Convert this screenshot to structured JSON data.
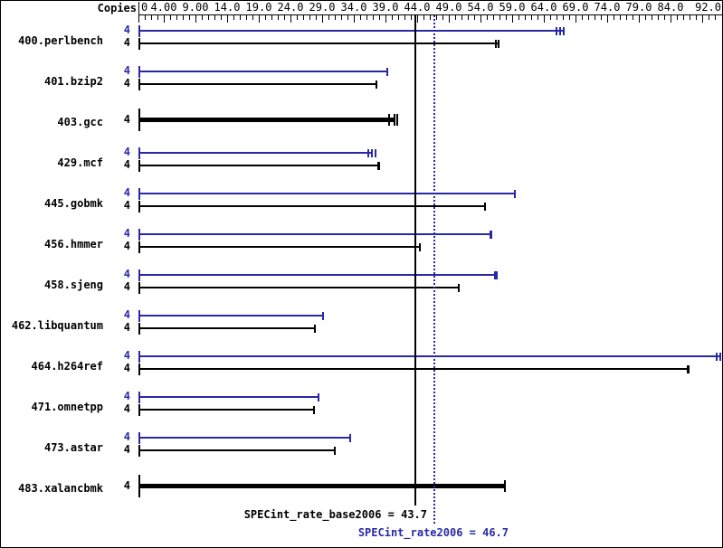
{
  "chart_data": {
    "type": "bar",
    "orientation": "horizontal",
    "copies_header": "Copies",
    "xlim": [
      0,
      92
    ],
    "grid": false,
    "colors": {
      "peak": "#2929a3",
      "base": "#000000",
      "background": "#ffffff",
      "border": "#000000"
    },
    "x_tick_labels": [
      {
        "value": 0,
        "text": "0",
        "align": "left"
      },
      {
        "value": 4,
        "text": "4.00",
        "align": "center"
      },
      {
        "value": 9,
        "text": "9.00",
        "align": "center"
      },
      {
        "value": 14,
        "text": "14.0",
        "align": "center"
      },
      {
        "value": 19,
        "text": "19.0",
        "align": "center"
      },
      {
        "value": 24,
        "text": "24.0",
        "align": "center"
      },
      {
        "value": 29,
        "text": "29.0",
        "align": "center"
      },
      {
        "value": 34,
        "text": "34.0",
        "align": "center"
      },
      {
        "value": 39,
        "text": "39.0",
        "align": "center"
      },
      {
        "value": 44,
        "text": "44.0",
        "align": "center"
      },
      {
        "value": 49,
        "text": "49.0",
        "align": "center"
      },
      {
        "value": 54,
        "text": "54.0",
        "align": "center"
      },
      {
        "value": 59,
        "text": "59.0",
        "align": "center"
      },
      {
        "value": 64,
        "text": "64.0",
        "align": "center"
      },
      {
        "value": 69,
        "text": "69.0",
        "align": "center"
      },
      {
        "value": 74,
        "text": "74.0",
        "align": "center"
      },
      {
        "value": 79,
        "text": "79.0",
        "align": "center"
      },
      {
        "value": 84,
        "text": "84.0",
        "align": "center"
      },
      {
        "value": 92,
        "text": "92.0",
        "align": "right"
      }
    ],
    "x_major_ticks": [
      4,
      9,
      14,
      19,
      24,
      29,
      34,
      39,
      44,
      49,
      54,
      59,
      64,
      69,
      74,
      79,
      84,
      89
    ],
    "x_minor_tick_step": 1,
    "categories": [
      "400.perlbench",
      "401.bzip2",
      "403.gcc",
      "429.mcf",
      "445.gobmk",
      "456.hmmer",
      "458.sjeng",
      "462.libquantum",
      "464.h264ref",
      "471.omnetpp",
      "473.astar",
      "483.xalancbmk"
    ],
    "series": [
      {
        "name": "peak (SPECint_rate2006)",
        "color": "#2929a3",
        "values": [
          67.1,
          39.3,
          null,
          36.9,
          59.4,
          55.7,
          56.5,
          29.2,
          91.8,
          28.4,
          33.4,
          null
        ]
      },
      {
        "name": "base (SPECint_rate_base2006)",
        "color": "#000000",
        "values": [
          56.9,
          37.6,
          40.4,
          38.0,
          54.7,
          44.4,
          50.6,
          27.8,
          86.9,
          27.7,
          31.0,
          57.8
        ]
      }
    ],
    "rows": [
      {
        "name": "400.perlbench",
        "bars": [
          {
            "kind": "peak",
            "copies": "4",
            "value": 67.1,
            "label": "67.1",
            "run_marks": [
              66.0,
              66.6
            ]
          },
          {
            "kind": "base",
            "copies": "4",
            "value": 56.9,
            "label": "56.9",
            "run_marks": [
              56.4
            ]
          }
        ]
      },
      {
        "name": "401.bzip2",
        "bars": [
          {
            "kind": "peak",
            "copies": "4",
            "value": 39.3,
            "label": "39.3",
            "run_marks": []
          },
          {
            "kind": "base",
            "copies": "4",
            "value": 37.6,
            "label": "37.6",
            "run_marks": []
          }
        ]
      },
      {
        "name": "403.gcc",
        "bars": [
          {
            "kind": "single",
            "copies": "4",
            "value": 40.4,
            "label": "40.4",
            "run_marks": [
              39.5,
              40.9
            ]
          }
        ]
      },
      {
        "name": "429.mcf",
        "bars": [
          {
            "kind": "peak",
            "copies": "4",
            "value": 36.9,
            "label": "36.9",
            "run_marks": [
              36.3,
              37.4
            ]
          },
          {
            "kind": "base",
            "copies": "4",
            "value": 38.0,
            "label": "38.0",
            "run_marks": [
              37.8
            ]
          }
        ]
      },
      {
        "name": "445.gobmk",
        "bars": [
          {
            "kind": "peak",
            "copies": "4",
            "value": 59.4,
            "label": "59.4",
            "run_marks": []
          },
          {
            "kind": "base",
            "copies": "4",
            "value": 54.7,
            "label": "54.7",
            "run_marks": []
          }
        ]
      },
      {
        "name": "456.hmmer",
        "bars": [
          {
            "kind": "peak",
            "copies": "4",
            "value": 55.7,
            "label": "55.7",
            "run_marks": [
              55.5
            ]
          },
          {
            "kind": "base",
            "copies": "4",
            "value": 44.4,
            "label": "44.4",
            "run_marks": []
          }
        ]
      },
      {
        "name": "458.sjeng",
        "bars": [
          {
            "kind": "peak",
            "copies": "4",
            "value": 56.5,
            "label": "56.5",
            "run_marks": [
              56.3
            ]
          },
          {
            "kind": "base",
            "copies": "4",
            "value": 50.6,
            "label": "50.6",
            "run_marks": []
          }
        ]
      },
      {
        "name": "462.libquantum",
        "bars": [
          {
            "kind": "peak",
            "copies": "4",
            "value": 29.2,
            "label": "29.2",
            "run_marks": []
          },
          {
            "kind": "base",
            "copies": "4",
            "value": 27.8,
            "label": "27.8",
            "run_marks": []
          }
        ]
      },
      {
        "name": "464.h264ref",
        "bars": [
          {
            "kind": "peak",
            "copies": "4",
            "value": 91.8,
            "label": "91.8",
            "run_marks": [
              91.3
            ]
          },
          {
            "kind": "base",
            "copies": "4",
            "value": 86.9,
            "label": "86.9",
            "run_marks": [
              86.7
            ]
          }
        ]
      },
      {
        "name": "471.omnetpp",
        "bars": [
          {
            "kind": "peak",
            "copies": "4",
            "value": 28.4,
            "label": "28.4",
            "run_marks": []
          },
          {
            "kind": "base",
            "copies": "4",
            "value": 27.7,
            "label": "27.7",
            "run_marks": []
          }
        ]
      },
      {
        "name": "473.astar",
        "bars": [
          {
            "kind": "peak",
            "copies": "4",
            "value": 33.4,
            "label": "33.4",
            "run_marks": []
          },
          {
            "kind": "base",
            "copies": "4",
            "value": 31.0,
            "label": "31.0",
            "run_marks": []
          }
        ]
      },
      {
        "name": "483.xalancbmk",
        "bars": [
          {
            "kind": "single",
            "copies": "4",
            "value": 57.8,
            "label": "57.8",
            "run_marks": []
          }
        ]
      }
    ],
    "reference_lines": [
      {
        "label": "SPECint_rate_base2006 = 43.7",
        "value": 43.7,
        "style": "solid",
        "color": "#000000"
      },
      {
        "label": "SPECint_rate2006 = 46.7",
        "value": 46.7,
        "style": "dotted",
        "color": "#2929a3"
      }
    ]
  }
}
